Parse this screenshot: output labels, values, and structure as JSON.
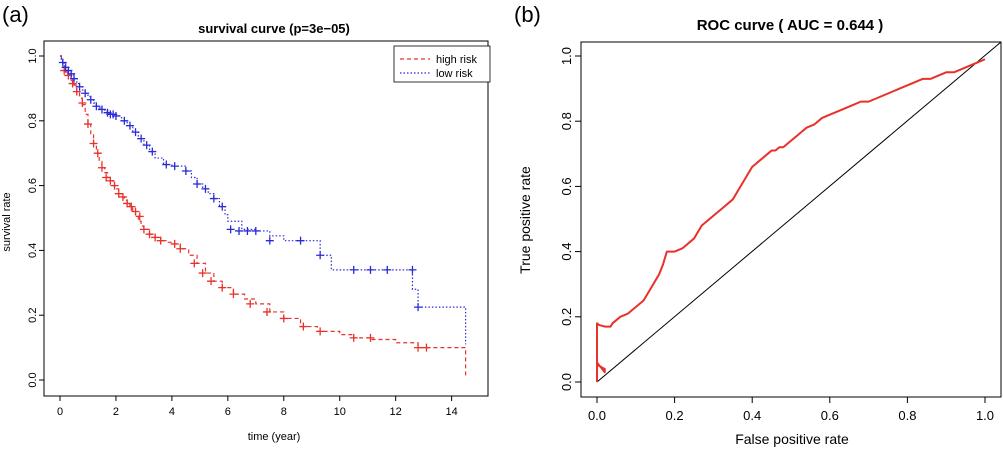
{
  "chart_data": [
    {
      "panel_label": "(a)",
      "type": "line",
      "step": true,
      "title": "survival curve (p=3e−05)",
      "xlabel": "time (year)",
      "ylabel": "survival rate",
      "xlim": [
        0,
        14.8
      ],
      "ylim": [
        0,
        1.0
      ],
      "xticks": [
        0,
        2,
        4,
        6,
        8,
        10,
        12,
        14
      ],
      "yticks": [
        0.0,
        0.2,
        0.4,
        0.6,
        0.8,
        1.0
      ],
      "grid": false,
      "legend_position": "top-right",
      "series": [
        {
          "name": "high risk",
          "color": "#e8312a",
          "line_style": "dashed",
          "x": [
            0,
            0.05,
            0.1,
            0.15,
            0.2,
            0.3,
            0.4,
            0.5,
            0.6,
            0.7,
            0.8,
            0.9,
            1.0,
            1.1,
            1.2,
            1.3,
            1.4,
            1.5,
            1.6,
            1.7,
            1.8,
            1.9,
            2.0,
            2.1,
            2.2,
            2.3,
            2.4,
            2.5,
            2.6,
            2.7,
            2.8,
            2.9,
            3.0,
            3.2,
            3.4,
            3.6,
            3.8,
            4.0,
            4.3,
            4.6,
            4.9,
            5.2,
            5.5,
            5.8,
            6.2,
            6.6,
            7.0,
            7.5,
            8.0,
            8.6,
            9.2,
            10.0,
            10.5,
            11.1,
            12.0,
            12.8,
            14.45,
            14.5
          ],
          "y": [
            1.0,
            0.985,
            0.97,
            0.96,
            0.95,
            0.94,
            0.925,
            0.91,
            0.89,
            0.87,
            0.85,
            0.82,
            0.79,
            0.76,
            0.73,
            0.7,
            0.675,
            0.655,
            0.64,
            0.625,
            0.615,
            0.6,
            0.59,
            0.575,
            0.565,
            0.555,
            0.545,
            0.535,
            0.52,
            0.505,
            0.49,
            0.475,
            0.465,
            0.45,
            0.44,
            0.43,
            0.425,
            0.42,
            0.405,
            0.385,
            0.36,
            0.33,
            0.305,
            0.285,
            0.265,
            0.25,
            0.235,
            0.21,
            0.19,
            0.165,
            0.15,
            0.14,
            0.13,
            0.125,
            0.115,
            0.1,
            0.1,
            0.01
          ]
        },
        {
          "name": "low risk",
          "color": "#2b2bd6",
          "line_style": "dotted",
          "x": [
            0,
            0.05,
            0.1,
            0.15,
            0.2,
            0.3,
            0.4,
            0.5,
            0.6,
            0.7,
            0.8,
            0.9,
            1.0,
            1.1,
            1.2,
            1.3,
            1.4,
            1.5,
            1.6,
            1.7,
            1.8,
            1.9,
            2.0,
            2.2,
            2.4,
            2.6,
            2.8,
            3.0,
            3.2,
            3.4,
            3.7,
            4.0,
            4.5,
            4.7,
            4.9,
            5.1,
            5.3,
            5.5,
            5.7,
            5.9,
            6.0,
            6.5,
            7.0,
            7.5,
            8.0,
            8.6,
            9.3,
            9.7,
            10.5,
            11.1,
            11.7,
            12.5,
            12.6,
            12.8,
            14.45,
            14.5
          ],
          "y": [
            1.0,
            0.99,
            0.98,
            0.97,
            0.965,
            0.955,
            0.945,
            0.93,
            0.915,
            0.905,
            0.895,
            0.885,
            0.875,
            0.865,
            0.855,
            0.845,
            0.84,
            0.835,
            0.83,
            0.825,
            0.82,
            0.82,
            0.815,
            0.8,
            0.785,
            0.765,
            0.745,
            0.725,
            0.705,
            0.685,
            0.665,
            0.66,
            0.645,
            0.625,
            0.605,
            0.59,
            0.575,
            0.56,
            0.535,
            0.51,
            0.49,
            0.465,
            0.46,
            0.445,
            0.43,
            0.43,
            0.385,
            0.34,
            0.34,
            0.34,
            0.34,
            0.34,
            0.28,
            0.225,
            0.225,
            0.11
          ]
        }
      ],
      "censor_marks": [
        {
          "series": "high risk",
          "x": [
            0.15,
            0.3,
            0.45,
            0.6,
            0.8,
            1.0,
            1.2,
            1.35,
            1.5,
            1.65,
            1.8,
            1.95,
            2.1,
            2.25,
            2.4,
            2.55,
            2.7,
            2.85,
            3.0,
            3.2,
            3.4,
            3.6,
            4.1,
            4.3,
            4.8,
            5.1,
            5.4,
            5.8,
            6.2,
            6.8,
            7.4,
            8.0,
            8.7,
            9.3,
            10.5,
            11.1,
            12.8,
            13.1
          ],
          "y": [
            0.955,
            0.94,
            0.915,
            0.89,
            0.855,
            0.79,
            0.73,
            0.7,
            0.655,
            0.625,
            0.615,
            0.6,
            0.575,
            0.565,
            0.545,
            0.535,
            0.52,
            0.505,
            0.465,
            0.45,
            0.44,
            0.43,
            0.42,
            0.405,
            0.36,
            0.33,
            0.305,
            0.285,
            0.265,
            0.235,
            0.21,
            0.19,
            0.165,
            0.15,
            0.13,
            0.13,
            0.1,
            0.1
          ]
        },
        {
          "series": "low risk",
          "x": [
            0.1,
            0.2,
            0.3,
            0.4,
            0.5,
            0.7,
            0.9,
            1.1,
            1.3,
            1.5,
            1.7,
            1.8,
            1.9,
            2.0,
            2.3,
            2.5,
            2.7,
            2.9,
            3.1,
            3.3,
            3.8,
            4.1,
            4.5,
            4.9,
            5.2,
            5.5,
            5.8,
            6.1,
            6.4,
            6.7,
            7.0,
            7.5,
            8.6,
            9.3,
            10.5,
            11.1,
            11.7,
            12.6,
            12.8
          ],
          "y": [
            0.98,
            0.965,
            0.955,
            0.945,
            0.93,
            0.905,
            0.885,
            0.865,
            0.845,
            0.835,
            0.825,
            0.82,
            0.82,
            0.815,
            0.8,
            0.785,
            0.765,
            0.745,
            0.725,
            0.705,
            0.665,
            0.66,
            0.645,
            0.605,
            0.59,
            0.56,
            0.535,
            0.465,
            0.46,
            0.46,
            0.46,
            0.43,
            0.43,
            0.385,
            0.34,
            0.34,
            0.34,
            0.34,
            0.225
          ]
        }
      ]
    },
    {
      "panel_label": "(b)",
      "type": "line",
      "title": "ROC curve ( AUC =  0.644 )",
      "xlabel": "False positive rate",
      "ylabel": "True positive rate",
      "xlim": [
        0,
        1
      ],
      "ylim": [
        0,
        1
      ],
      "xticks": [
        0.0,
        0.2,
        0.4,
        0.6,
        0.8,
        1.0
      ],
      "yticks": [
        0.0,
        0.2,
        0.4,
        0.6,
        0.8,
        1.0
      ],
      "grid": false,
      "reference_line": {
        "x": [
          0,
          1
        ],
        "y": [
          0,
          1
        ],
        "color": "#000000"
      },
      "series": [
        {
          "color": "#e8312a",
          "x": [
            0.0,
            0.0,
            0.0,
            0.0,
            0.005,
            0.02,
            0.02,
            0.0,
            0.0,
            0.0,
            0.005,
            0.02,
            0.035,
            0.04,
            0.05,
            0.06,
            0.07,
            0.08,
            0.09,
            0.1,
            0.11,
            0.12,
            0.13,
            0.14,
            0.15,
            0.16,
            0.17,
            0.18,
            0.185,
            0.19,
            0.2,
            0.21,
            0.22,
            0.23,
            0.24,
            0.25,
            0.26,
            0.27,
            0.28,
            0.29,
            0.3,
            0.31,
            0.32,
            0.33,
            0.34,
            0.35,
            0.36,
            0.37,
            0.38,
            0.39,
            0.4,
            0.41,
            0.42,
            0.43,
            0.44,
            0.45,
            0.46,
            0.47,
            0.48,
            0.49,
            0.5,
            0.52,
            0.54,
            0.56,
            0.58,
            0.6,
            0.62,
            0.64,
            0.66,
            0.68,
            0.7,
            0.72,
            0.74,
            0.76,
            0.78,
            0.8,
            0.82,
            0.84,
            0.86,
            0.88,
            0.9,
            0.92,
            0.94,
            0.96,
            0.98,
            1.0
          ],
          "y": [
            0.0,
            0.02,
            0.03,
            0.06,
            0.05,
            0.04,
            0.03,
            0.06,
            0.12,
            0.18,
            0.175,
            0.17,
            0.17,
            0.18,
            0.19,
            0.2,
            0.205,
            0.21,
            0.22,
            0.23,
            0.24,
            0.25,
            0.27,
            0.29,
            0.31,
            0.33,
            0.36,
            0.4,
            0.4,
            0.4,
            0.4,
            0.405,
            0.41,
            0.42,
            0.43,
            0.44,
            0.46,
            0.48,
            0.49,
            0.5,
            0.51,
            0.52,
            0.53,
            0.54,
            0.55,
            0.56,
            0.58,
            0.6,
            0.62,
            0.64,
            0.66,
            0.67,
            0.68,
            0.69,
            0.7,
            0.71,
            0.71,
            0.72,
            0.72,
            0.73,
            0.74,
            0.76,
            0.78,
            0.79,
            0.81,
            0.82,
            0.83,
            0.84,
            0.85,
            0.86,
            0.86,
            0.87,
            0.88,
            0.89,
            0.9,
            0.91,
            0.92,
            0.93,
            0.93,
            0.94,
            0.95,
            0.95,
            0.96,
            0.97,
            0.98,
            0.99
          ]
        }
      ]
    }
  ]
}
